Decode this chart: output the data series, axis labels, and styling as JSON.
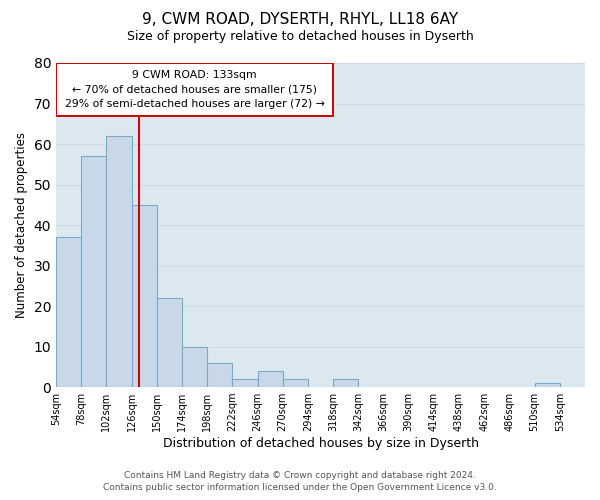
{
  "title": "9, CWM ROAD, DYSERTH, RHYL, LL18 6AY",
  "subtitle": "Size of property relative to detached houses in Dyserth",
  "xlabel": "Distribution of detached houses by size in Dyserth",
  "ylabel": "Number of detached properties",
  "bar_edges": [
    54,
    78,
    102,
    126,
    150,
    174,
    198,
    222,
    246,
    270,
    294,
    318,
    342,
    366,
    390,
    414,
    438,
    462,
    486,
    510,
    534,
    558
  ],
  "bar_heights": [
    37,
    57,
    62,
    45,
    22,
    10,
    6,
    2,
    4,
    2,
    0,
    2,
    0,
    0,
    0,
    0,
    0,
    0,
    0,
    1,
    0
  ],
  "bar_color": "#c8d8e8",
  "bar_edgecolor": "#7aaac8",
  "vline_x": 133,
  "vline_color": "#cc0000",
  "ylim": [
    0,
    80
  ],
  "yticks": [
    0,
    10,
    20,
    30,
    40,
    50,
    60,
    70,
    80
  ],
  "annotation_box_text": "9 CWM ROAD: 133sqm\n← 70% of detached houses are smaller (175)\n29% of semi-detached houses are larger (72) →",
  "footer_text": "Contains HM Land Registry data © Crown copyright and database right 2024.\nContains public sector information licensed under the Open Government Licence v3.0.",
  "grid_color": "#d0d8e8",
  "background_color": "#dce8f0",
  "xtick_labels": [
    "54sqm",
    "78sqm",
    "102sqm",
    "126sqm",
    "150sqm",
    "174sqm",
    "198sqm",
    "222sqm",
    "246sqm",
    "270sqm",
    "294sqm",
    "318sqm",
    "342sqm",
    "366sqm",
    "390sqm",
    "414sqm",
    "438sqm",
    "462sqm",
    "486sqm",
    "510sqm",
    "534sqm"
  ]
}
